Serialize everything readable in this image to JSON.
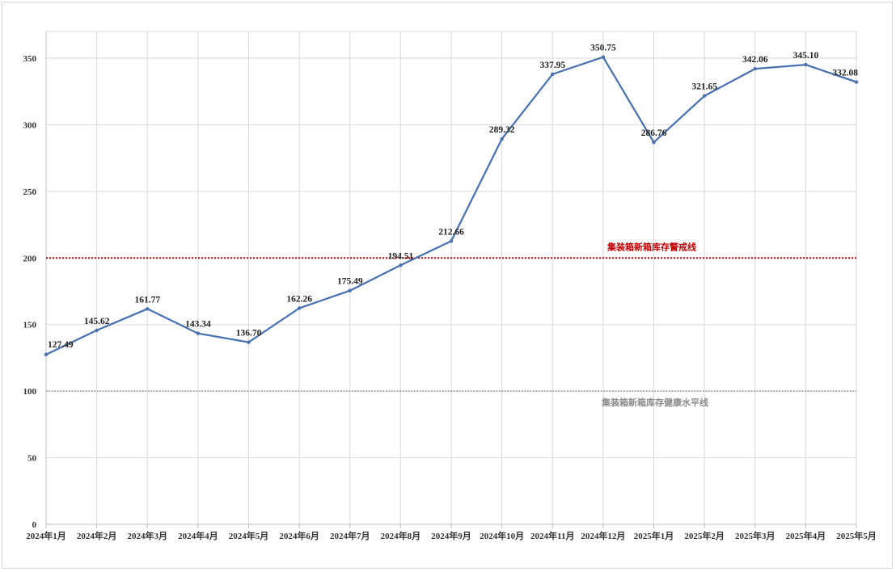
{
  "chart_data": {
    "type": "line",
    "title": "",
    "xlabel": "",
    "ylabel": "",
    "ylim": [
      0,
      370
    ],
    "yticks": [
      0,
      50,
      100,
      150,
      200,
      250,
      300,
      350
    ],
    "grid": true,
    "categories": [
      "2024年1月",
      "2024年2月",
      "2024年3月",
      "2024年4月",
      "2024年5月",
      "2024年6月",
      "2024年7月",
      "2024年8月",
      "2024年9月",
      "2024年10月",
      "2024年11月",
      "2024年12月",
      "2025年1月",
      "2025年2月",
      "2025年3月",
      "2025年4月",
      "2025年5月"
    ],
    "series": [
      {
        "values": [
          127.49,
          145.62,
          161.77,
          143.34,
          136.7,
          162.26,
          175.49,
          194.51,
          212.66,
          289.32,
          337.95,
          350.75,
          286.76,
          321.65,
          342.06,
          345.1,
          332.08
        ],
        "labels": [
          "127.49",
          "145.62",
          "161.77",
          "143.34",
          "136.70",
          "162.26",
          "175.49",
          "194.51",
          "212.66",
          "289.32",
          "337.95",
          "350.75",
          "286.76",
          "321.65",
          "342.06",
          "345.10",
          "332.08"
        ],
        "color": "#4a72b0"
      }
    ],
    "reference_lines": [
      {
        "value": 200,
        "label": "集装箱新箱库存警戒线",
        "color": "#c00000",
        "style": "dotted"
      },
      {
        "value": 100,
        "label": "集装箱新箱库存健康水平线",
        "color": "#8c8c8c",
        "style": "dotted"
      }
    ]
  }
}
